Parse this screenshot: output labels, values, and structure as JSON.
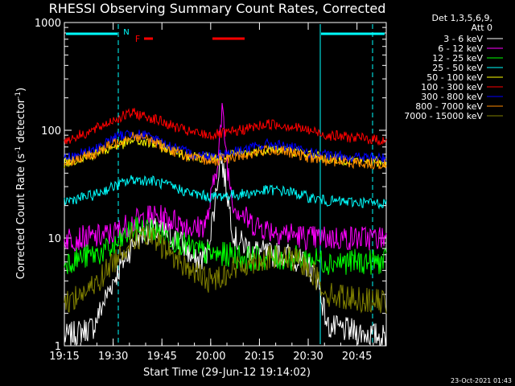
{
  "chart_data": {
    "type": "line",
    "title": "RHESSI Observing Summary Count Rates, Corrected",
    "xlabel": "Start Time (29-Jun-12 19:14:02)",
    "ylabel_parts": [
      "Corrected Count Rate (s",
      "-1",
      " detector",
      "-1",
      ")"
    ],
    "y_scale": "log",
    "ylim": [
      1,
      1000
    ],
    "yticks": [
      {
        "value": 1,
        "label": "1"
      },
      {
        "value": 10,
        "label": "10"
      },
      {
        "value": 100,
        "label": "100"
      },
      {
        "value": 1000,
        "label": "1000"
      }
    ],
    "xlim_minutes": [
      19.25,
      20.9
    ],
    "xticks": [
      {
        "value": 19.25,
        "label": "19:15"
      },
      {
        "value": 19.5,
        "label": "19:30"
      },
      {
        "value": 19.75,
        "label": "19:45"
      },
      {
        "value": 20.0,
        "label": "20:00"
      },
      {
        "value": 20.25,
        "label": "20:15"
      },
      {
        "value": 20.5,
        "label": "20:30"
      },
      {
        "value": 20.75,
        "label": "20:45"
      }
    ],
    "legend_header": [
      "Det 1,3,5,6,9,",
      "Att 0"
    ],
    "series": [
      {
        "name": "3 - 6 keV",
        "color": "#ffffff",
        "points": [
          [
            19.25,
            1.2
          ],
          [
            19.4,
            1.5
          ],
          [
            19.45,
            2.5
          ],
          [
            19.5,
            4
          ],
          [
            19.55,
            6
          ],
          [
            19.62,
            10
          ],
          [
            19.7,
            12
          ],
          [
            19.78,
            11
          ],
          [
            19.85,
            9
          ],
          [
            19.92,
            6
          ],
          [
            19.98,
            7
          ],
          [
            20.02,
            20
          ],
          [
            20.05,
            60
          ],
          [
            20.08,
            30
          ],
          [
            20.12,
            10
          ],
          [
            20.2,
            8
          ],
          [
            20.3,
            7
          ],
          [
            20.4,
            7
          ],
          [
            20.5,
            5.5
          ],
          [
            20.55,
            4
          ],
          [
            20.6,
            1.5
          ],
          [
            20.9,
            1.2
          ]
        ]
      },
      {
        "name": "6 - 12 keV",
        "color": "#ff00ff",
        "points": [
          [
            19.25,
            10
          ],
          [
            19.4,
            10
          ],
          [
            19.5,
            11
          ],
          [
            19.6,
            14
          ],
          [
            19.7,
            16
          ],
          [
            19.78,
            15
          ],
          [
            19.85,
            14
          ],
          [
            19.92,
            12
          ],
          [
            19.98,
            14
          ],
          [
            20.03,
            45
          ],
          [
            20.06,
            150
          ],
          [
            20.09,
            40
          ],
          [
            20.12,
            20
          ],
          [
            20.2,
            14
          ],
          [
            20.3,
            12
          ],
          [
            20.4,
            11
          ],
          [
            20.5,
            10
          ],
          [
            20.6,
            10
          ],
          [
            20.9,
            10
          ]
        ]
      },
      {
        "name": "12 - 25 keV",
        "color": "#00ff00",
        "points": [
          [
            19.25,
            6
          ],
          [
            19.4,
            7
          ],
          [
            19.5,
            8
          ],
          [
            19.6,
            12
          ],
          [
            19.7,
            12
          ],
          [
            19.8,
            10
          ],
          [
            19.9,
            8
          ],
          [
            20.0,
            7
          ],
          [
            20.1,
            7
          ],
          [
            20.2,
            6.5
          ],
          [
            20.3,
            6.5
          ],
          [
            20.4,
            6.5
          ],
          [
            20.5,
            6.5
          ],
          [
            20.6,
            6
          ],
          [
            20.9,
            6
          ]
        ]
      },
      {
        "name": "25 - 50 keV",
        "color": "#00ffff",
        "points": [
          [
            19.25,
            22
          ],
          [
            19.4,
            25
          ],
          [
            19.5,
            30
          ],
          [
            19.6,
            35
          ],
          [
            19.7,
            34
          ],
          [
            19.8,
            30
          ],
          [
            19.9,
            26
          ],
          [
            20.0,
            24
          ],
          [
            20.1,
            25
          ],
          [
            20.2,
            26
          ],
          [
            20.3,
            28
          ],
          [
            20.4,
            27
          ],
          [
            20.5,
            24
          ],
          [
            20.6,
            22
          ],
          [
            20.9,
            21
          ]
        ]
      },
      {
        "name": "50 - 100 keV",
        "color": "#ffff00",
        "points": [
          [
            19.25,
            50
          ],
          [
            19.4,
            60
          ],
          [
            19.5,
            70
          ],
          [
            19.6,
            80
          ],
          [
            19.7,
            75
          ],
          [
            19.8,
            65
          ],
          [
            19.9,
            58
          ],
          [
            20.0,
            55
          ],
          [
            20.1,
            58
          ],
          [
            20.2,
            62
          ],
          [
            20.3,
            68
          ],
          [
            20.4,
            65
          ],
          [
            20.5,
            60
          ],
          [
            20.6,
            55
          ],
          [
            20.9,
            50
          ]
        ]
      },
      {
        "name": "100 - 300 keV",
        "color": "#ff0000",
        "points": [
          [
            19.25,
            80
          ],
          [
            19.4,
            100
          ],
          [
            19.5,
            125
          ],
          [
            19.6,
            145
          ],
          [
            19.7,
            130
          ],
          [
            19.8,
            110
          ],
          [
            19.9,
            95
          ],
          [
            20.0,
            90
          ],
          [
            20.1,
            95
          ],
          [
            20.2,
            105
          ],
          [
            20.3,
            115
          ],
          [
            20.4,
            110
          ],
          [
            20.5,
            100
          ],
          [
            20.6,
            90
          ],
          [
            20.9,
            80
          ]
        ]
      },
      {
        "name": "300 - 800 keV",
        "color": "#0000ff",
        "points": [
          [
            19.25,
            55
          ],
          [
            19.4,
            65
          ],
          [
            19.5,
            85
          ],
          [
            19.6,
            95
          ],
          [
            19.7,
            85
          ],
          [
            19.8,
            70
          ],
          [
            19.9,
            60
          ],
          [
            20.0,
            58
          ],
          [
            20.1,
            62
          ],
          [
            20.2,
            68
          ],
          [
            20.3,
            75
          ],
          [
            20.4,
            70
          ],
          [
            20.5,
            62
          ],
          [
            20.6,
            58
          ],
          [
            20.9,
            55
          ]
        ]
      },
      {
        "name": "800 - 7000 keV",
        "color": "#ff8c00",
        "points": [
          [
            19.25,
            50
          ],
          [
            19.4,
            60
          ],
          [
            19.5,
            75
          ],
          [
            19.6,
            90
          ],
          [
            19.7,
            80
          ],
          [
            19.8,
            65
          ],
          [
            19.9,
            55
          ],
          [
            20.0,
            52
          ],
          [
            20.1,
            55
          ],
          [
            20.2,
            60
          ],
          [
            20.3,
            66
          ],
          [
            20.4,
            62
          ],
          [
            20.5,
            56
          ],
          [
            20.6,
            52
          ],
          [
            20.9,
            48
          ]
        ]
      },
      {
        "name": "7000 - 15000 keV",
        "color": "#808000",
        "points": [
          [
            19.25,
            2.5
          ],
          [
            19.4,
            3.5
          ],
          [
            19.5,
            6
          ],
          [
            19.6,
            10
          ],
          [
            19.7,
            10
          ],
          [
            19.8,
            7
          ],
          [
            19.9,
            5
          ],
          [
            20.0,
            4
          ],
          [
            20.1,
            5
          ],
          [
            20.2,
            6
          ],
          [
            20.3,
            6.5
          ],
          [
            20.4,
            6.5
          ],
          [
            20.5,
            5.5
          ],
          [
            20.6,
            3
          ],
          [
            20.9,
            2.5
          ]
        ]
      }
    ],
    "annotations": [
      {
        "label": "N",
        "color": "#00ffff"
      },
      {
        "label": "F",
        "color": "#ff0000"
      }
    ],
    "footer": "23-Oct-2021 01:43"
  }
}
